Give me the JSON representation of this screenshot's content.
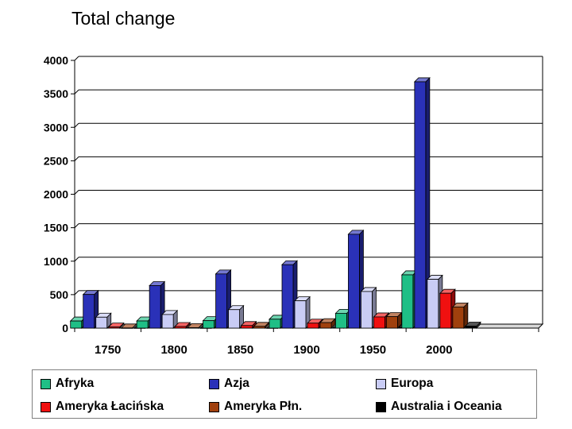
{
  "chart_data": {
    "type": "bar",
    "title": "Total change",
    "categories": [
      "1750",
      "1800",
      "1850",
      "1900",
      "1950",
      "2000"
    ],
    "ylim": [
      0,
      4000
    ],
    "yticks": [
      "0",
      "500",
      "1000",
      "1500",
      "2000",
      "2500",
      "3000",
      "3500",
      "4000"
    ],
    "grid": true,
    "legend_position": "bottom",
    "series": [
      {
        "name": "Afryka",
        "color": "#1fbf86",
        "values": [
          106,
          107,
          111,
          133,
          221,
          796
        ]
      },
      {
        "name": "Azja",
        "color": "#2a31b8",
        "values": [
          502,
          635,
          809,
          947,
          1402,
          3680
        ]
      },
      {
        "name": "Europa",
        "color": "#c9ccf5",
        "values": [
          163,
          203,
          276,
          408,
          547,
          729
        ]
      },
      {
        "name": "Ameryka Łacińska",
        "color": "#f01010",
        "values": [
          16,
          24,
          38,
          74,
          167,
          520
        ]
      },
      {
        "name": "Ameryka Płn.",
        "color": "#a0400d",
        "values": [
          2,
          7,
          26,
          82,
          172,
          316
        ]
      },
      {
        "name": "Australia i Oceania",
        "color": "#000000",
        "values": [
          2,
          2,
          2,
          6,
          13,
          30
        ]
      }
    ]
  }
}
